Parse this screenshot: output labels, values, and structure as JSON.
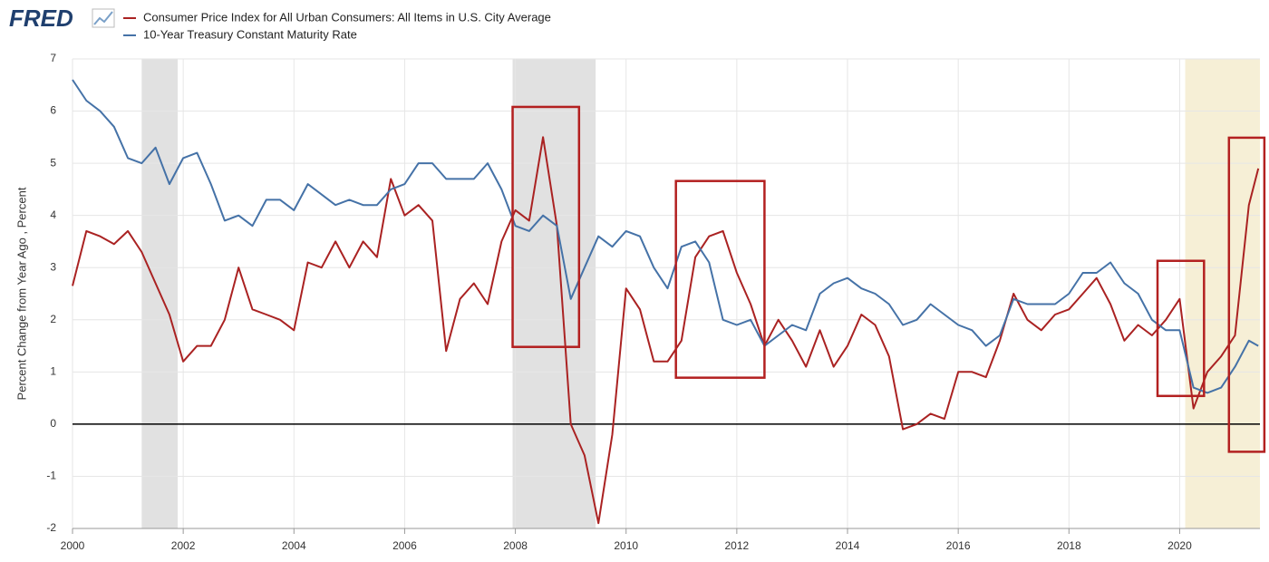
{
  "chart_data": {
    "type": "line",
    "logo": "FRED",
    "ylabel": "Percent Change from Year Ago , Percent",
    "legend": "top-left",
    "grid": true,
    "xlim": [
      2000,
      2021.45
    ],
    "ylim": [
      -2,
      7
    ],
    "xticks": [
      2000,
      2002,
      2004,
      2006,
      2008,
      2010,
      2012,
      2014,
      2016,
      2018,
      2020
    ],
    "yticks": [
      -2,
      -1,
      0,
      1,
      2,
      3,
      4,
      5,
      6,
      7
    ],
    "zero_line": true,
    "x": [
      2000,
      2000.25,
      2000.5,
      2000.75,
      2001,
      2001.25,
      2001.5,
      2001.75,
      2002,
      2002.25,
      2002.5,
      2002.75,
      2003,
      2003.25,
      2003.5,
      2003.75,
      2004,
      2004.25,
      2004.5,
      2004.75,
      2005,
      2005.25,
      2005.5,
      2005.75,
      2006,
      2006.25,
      2006.5,
      2006.75,
      2007,
      2007.25,
      2007.5,
      2007.75,
      2008,
      2008.25,
      2008.5,
      2008.75,
      2009,
      2009.25,
      2009.5,
      2009.75,
      2010,
      2010.25,
      2010.5,
      2010.75,
      2011,
      2011.25,
      2011.5,
      2011.75,
      2012,
      2012.25,
      2012.5,
      2012.75,
      2013,
      2013.25,
      2013.5,
      2013.75,
      2014,
      2014.25,
      2014.5,
      2014.75,
      2015,
      2015.25,
      2015.5,
      2015.75,
      2016,
      2016.25,
      2016.5,
      2016.75,
      2017,
      2017.25,
      2017.5,
      2017.75,
      2018,
      2018.25,
      2018.5,
      2018.75,
      2019,
      2019.25,
      2019.5,
      2019.75,
      2020,
      2020.25,
      2020.5,
      2020.75,
      2021,
      2021.25,
      2021.42
    ],
    "series": [
      {
        "name": "Consumer Price Index for All Urban Consumers: All Items in U.S. City Average",
        "color": "#aa2222",
        "values": [
          2.65,
          3.7,
          3.6,
          3.45,
          3.7,
          3.3,
          2.7,
          2.1,
          1.2,
          1.5,
          1.5,
          2.0,
          3.0,
          2.2,
          2.1,
          2.0,
          1.8,
          3.1,
          3.0,
          3.5,
          3.0,
          3.5,
          3.2,
          4.7,
          4.0,
          4.2,
          3.9,
          1.4,
          2.4,
          2.7,
          2.3,
          3.5,
          4.1,
          3.9,
          5.5,
          3.8,
          0.0,
          -0.6,
          -1.9,
          -0.2,
          2.6,
          2.2,
          1.2,
          1.2,
          1.6,
          3.2,
          3.6,
          3.7,
          2.9,
          2.3,
          1.5,
          2.0,
          1.6,
          1.1,
          1.8,
          1.1,
          1.5,
          2.1,
          1.9,
          1.3,
          -0.1,
          0.0,
          0.2,
          0.1,
          1.0,
          1.0,
          0.9,
          1.6,
          2.5,
          2.0,
          1.8,
          2.1,
          2.2,
          2.5,
          2.8,
          2.3,
          1.6,
          1.9,
          1.7,
          2.0,
          2.4,
          0.3,
          1.0,
          1.3,
          1.7,
          4.2,
          4.9
        ]
      },
      {
        "name": "10-Year Treasury Constant Maturity Rate",
        "color": "#4572a7",
        "values": [
          6.6,
          6.2,
          6.0,
          5.7,
          5.1,
          5.0,
          5.3,
          4.6,
          5.1,
          5.2,
          4.6,
          3.9,
          4.0,
          3.8,
          4.3,
          4.3,
          4.1,
          4.6,
          4.4,
          4.2,
          4.3,
          4.2,
          4.2,
          4.5,
          4.6,
          5.0,
          5.0,
          4.7,
          4.7,
          4.7,
          5.0,
          4.5,
          3.8,
          3.7,
          4.0,
          3.8,
          2.4,
          3.0,
          3.6,
          3.4,
          3.7,
          3.6,
          3.0,
          2.6,
          3.4,
          3.5,
          3.1,
          2.0,
          1.9,
          2.0,
          1.5,
          1.7,
          1.9,
          1.8,
          2.5,
          2.7,
          2.8,
          2.6,
          2.5,
          2.3,
          1.9,
          2.0,
          2.3,
          2.1,
          1.9,
          1.8,
          1.5,
          1.7,
          2.4,
          2.3,
          2.3,
          2.3,
          2.5,
          2.9,
          2.9,
          3.1,
          2.7,
          2.5,
          2.0,
          1.8,
          1.8,
          0.7,
          0.6,
          0.7,
          1.1,
          1.6,
          1.5
        ]
      }
    ],
    "shaded_ranges": [
      {
        "range": [
          2001.25,
          2001.9
        ],
        "color": "#e1e1e1"
      },
      {
        "range": [
          2007.95,
          2009.45
        ],
        "color": "#e1e1e1"
      },
      {
        "range": [
          2020.1,
          2021.45
        ],
        "color": "#f6efd6"
      }
    ],
    "annotation_boxes": [
      {
        "x": [
          2007.95,
          2009.15
        ],
        "y": [
          1.48,
          6.08
        ],
        "color": "#b32020"
      },
      {
        "x": [
          2010.9,
          2012.5
        ],
        "y": [
          0.89,
          4.66
        ],
        "color": "#b32020"
      },
      {
        "x": [
          2019.6,
          2020.44
        ],
        "y": [
          0.54,
          3.13
        ],
        "color": "#b32020"
      },
      {
        "x": [
          2020.89,
          2021.53
        ],
        "y": [
          -0.53,
          5.49
        ],
        "color": "#b32020"
      }
    ]
  }
}
